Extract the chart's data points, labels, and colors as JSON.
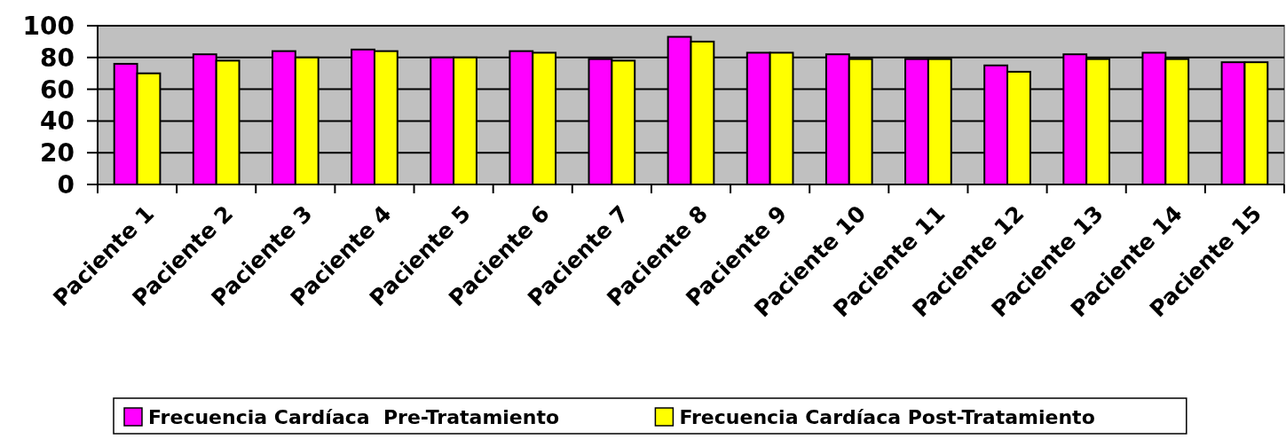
{
  "chart_data": {
    "type": "bar",
    "categories": [
      "Paciente 1",
      "Paciente 2",
      "Paciente 3",
      "Paciente 4",
      "Paciente 5",
      "Paciente 6",
      "Paciente 7",
      "Paciente 8",
      "Paciente 9",
      "Paciente 10",
      "Paciente 11",
      "Paciente 12",
      "Paciente 13",
      "Paciente 14",
      "Paciente 15"
    ],
    "series": [
      {
        "name": "Frecuencia Cardíaca  Pre-Tratamiento",
        "color": "#ff00ff",
        "values": [
          76,
          82,
          84,
          85,
          80,
          84,
          79,
          93,
          83,
          82,
          79,
          75,
          82,
          83,
          77
        ]
      },
      {
        "name": "Frecuencia Cardíaca Post-Tratamiento",
        "color": "#ffff00",
        "values": [
          70,
          78,
          80,
          84,
          80,
          83,
          78,
          90,
          83,
          79,
          79,
          71,
          79,
          79,
          77
        ]
      }
    ],
    "ylim": [
      0,
      100
    ],
    "yticks": [
      0,
      20,
      40,
      60,
      80,
      100
    ],
    "grid": "y",
    "legend": "bottom"
  }
}
